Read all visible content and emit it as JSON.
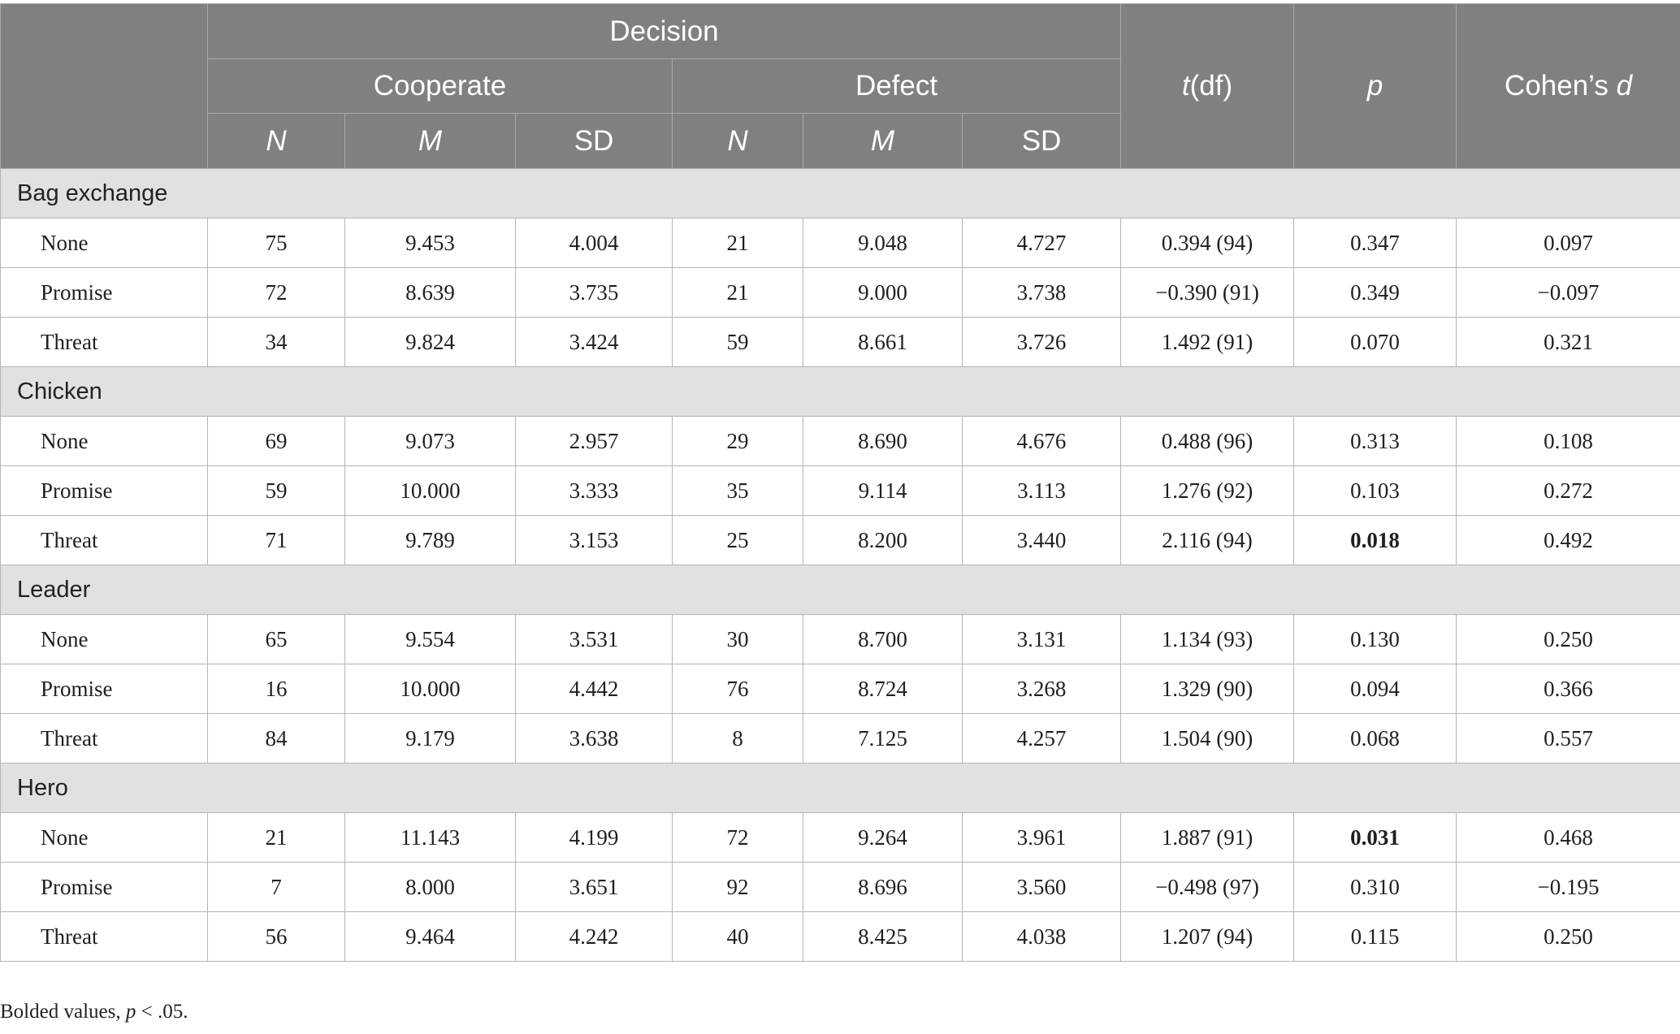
{
  "header": {
    "decision": "Decision",
    "cooperate": "Cooperate",
    "defect": "Defect",
    "tdf_t": "t",
    "tdf_rest": "(df)",
    "p": "p",
    "cohens_prefix": "Cohen’s ",
    "cohens_d": "d",
    "N": "N",
    "M": "M",
    "SD": "SD"
  },
  "groups": [
    {
      "name": "Bag exchange",
      "rows": [
        {
          "label": "None",
          "coop_n": "75",
          "coop_m": "9.453",
          "coop_sd": "4.004",
          "def_n": "21",
          "def_m": "9.048",
          "def_sd": "4.727",
          "tdf": "0.394 (94)",
          "p": "0.347",
          "d": "0.097",
          "p_bold": false
        },
        {
          "label": "Promise",
          "coop_n": "72",
          "coop_m": "8.639",
          "coop_sd": "3.735",
          "def_n": "21",
          "def_m": "9.000",
          "def_sd": "3.738",
          "tdf": "−0.390 (91)",
          "p": "0.349",
          "d": "−0.097",
          "p_bold": false
        },
        {
          "label": "Threat",
          "coop_n": "34",
          "coop_m": "9.824",
          "coop_sd": "3.424",
          "def_n": "59",
          "def_m": "8.661",
          "def_sd": "3.726",
          "tdf": "1.492 (91)",
          "p": "0.070",
          "d": "0.321",
          "p_bold": false
        }
      ]
    },
    {
      "name": "Chicken",
      "rows": [
        {
          "label": "None",
          "coop_n": "69",
          "coop_m": "9.073",
          "coop_sd": "2.957",
          "def_n": "29",
          "def_m": "8.690",
          "def_sd": "4.676",
          "tdf": "0.488 (96)",
          "p": "0.313",
          "d": "0.108",
          "p_bold": false
        },
        {
          "label": "Promise",
          "coop_n": "59",
          "coop_m": "10.000",
          "coop_sd": "3.333",
          "def_n": "35",
          "def_m": "9.114",
          "def_sd": "3.113",
          "tdf": "1.276 (92)",
          "p": "0.103",
          "d": "0.272",
          "p_bold": false
        },
        {
          "label": "Threat",
          "coop_n": "71",
          "coop_m": "9.789",
          "coop_sd": "3.153",
          "def_n": "25",
          "def_m": "8.200",
          "def_sd": "3.440",
          "tdf": "2.116 (94)",
          "p": "0.018",
          "d": "0.492",
          "p_bold": true
        }
      ]
    },
    {
      "name": "Leader",
      "rows": [
        {
          "label": "None",
          "coop_n": "65",
          "coop_m": "9.554",
          "coop_sd": "3.531",
          "def_n": "30",
          "def_m": "8.700",
          "def_sd": "3.131",
          "tdf": "1.134 (93)",
          "p": "0.130",
          "d": "0.250",
          "p_bold": false
        },
        {
          "label": "Promise",
          "coop_n": "16",
          "coop_m": "10.000",
          "coop_sd": "4.442",
          "def_n": "76",
          "def_m": "8.724",
          "def_sd": "3.268",
          "tdf": "1.329 (90)",
          "p": "0.094",
          "d": "0.366",
          "p_bold": false
        },
        {
          "label": "Threat",
          "coop_n": "84",
          "coop_m": "9.179",
          "coop_sd": "3.638",
          "def_n": "8",
          "def_m": "7.125",
          "def_sd": "4.257",
          "tdf": "1.504 (90)",
          "p": "0.068",
          "d": "0.557",
          "p_bold": false
        }
      ]
    },
    {
      "name": "Hero",
      "rows": [
        {
          "label": "None",
          "coop_n": "21",
          "coop_m": "11.143",
          "coop_sd": "4.199",
          "def_n": "72",
          "def_m": "9.264",
          "def_sd": "3.961",
          "tdf": "1.887 (91)",
          "p": "0.031",
          "d": "0.468",
          "p_bold": true
        },
        {
          "label": "Promise",
          "coop_n": "7",
          "coop_m": "8.000",
          "coop_sd": "3.651",
          "def_n": "92",
          "def_m": "8.696",
          "def_sd": "3.560",
          "tdf": "−0.498 (97)",
          "p": "0.310",
          "d": "−0.195",
          "p_bold": false
        },
        {
          "label": "Threat",
          "coop_n": "56",
          "coop_m": "9.464",
          "coop_sd": "4.242",
          "def_n": "40",
          "def_m": "8.425",
          "def_sd": "4.038",
          "tdf": "1.207 (94)",
          "p": "0.115",
          "d": "0.250",
          "p_bold": false
        }
      ]
    }
  ],
  "footnote": {
    "prefix": "Bolded values, ",
    "p": "p",
    "suffix": " < .05."
  },
  "colors": {
    "header_bg": "#7f8180",
    "group_row_bg": "#e1e1e2",
    "border": "#a7a9ac"
  }
}
